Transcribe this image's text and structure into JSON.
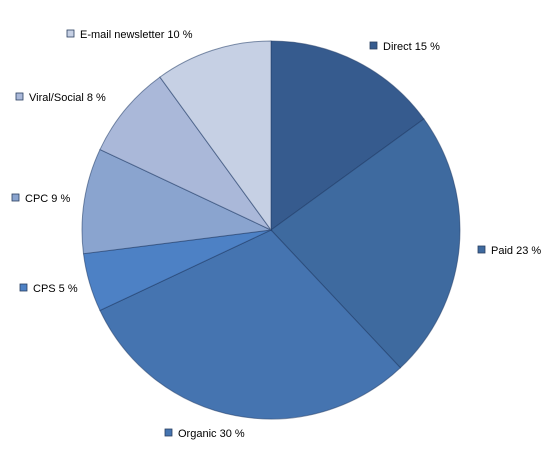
{
  "chart_data": {
    "type": "pie",
    "categories": [
      "Direct",
      "Paid",
      "Organic",
      "CPS",
      "CPC",
      "Viral/Social",
      "E-mail newsletter"
    ],
    "values": [
      15,
      23,
      30,
      5,
      9,
      8,
      10
    ],
    "labels": [
      "Direct 15 %",
      "Paid 23 %",
      "Organic 30 %",
      "CPS 5 %",
      "CPC 9 %",
      "Viral/Social 8 %",
      "E-mail newsletter 10 %"
    ],
    "colors": [
      "#365b8e",
      "#3e6a9f",
      "#4574b0",
      "#4d81c5",
      "#8aa4cf",
      "#aab8d9",
      "#c6d0e4"
    ],
    "start_angle_deg": 0,
    "direction": "clockwise",
    "legend": "labels-around-pie",
    "title": ""
  }
}
